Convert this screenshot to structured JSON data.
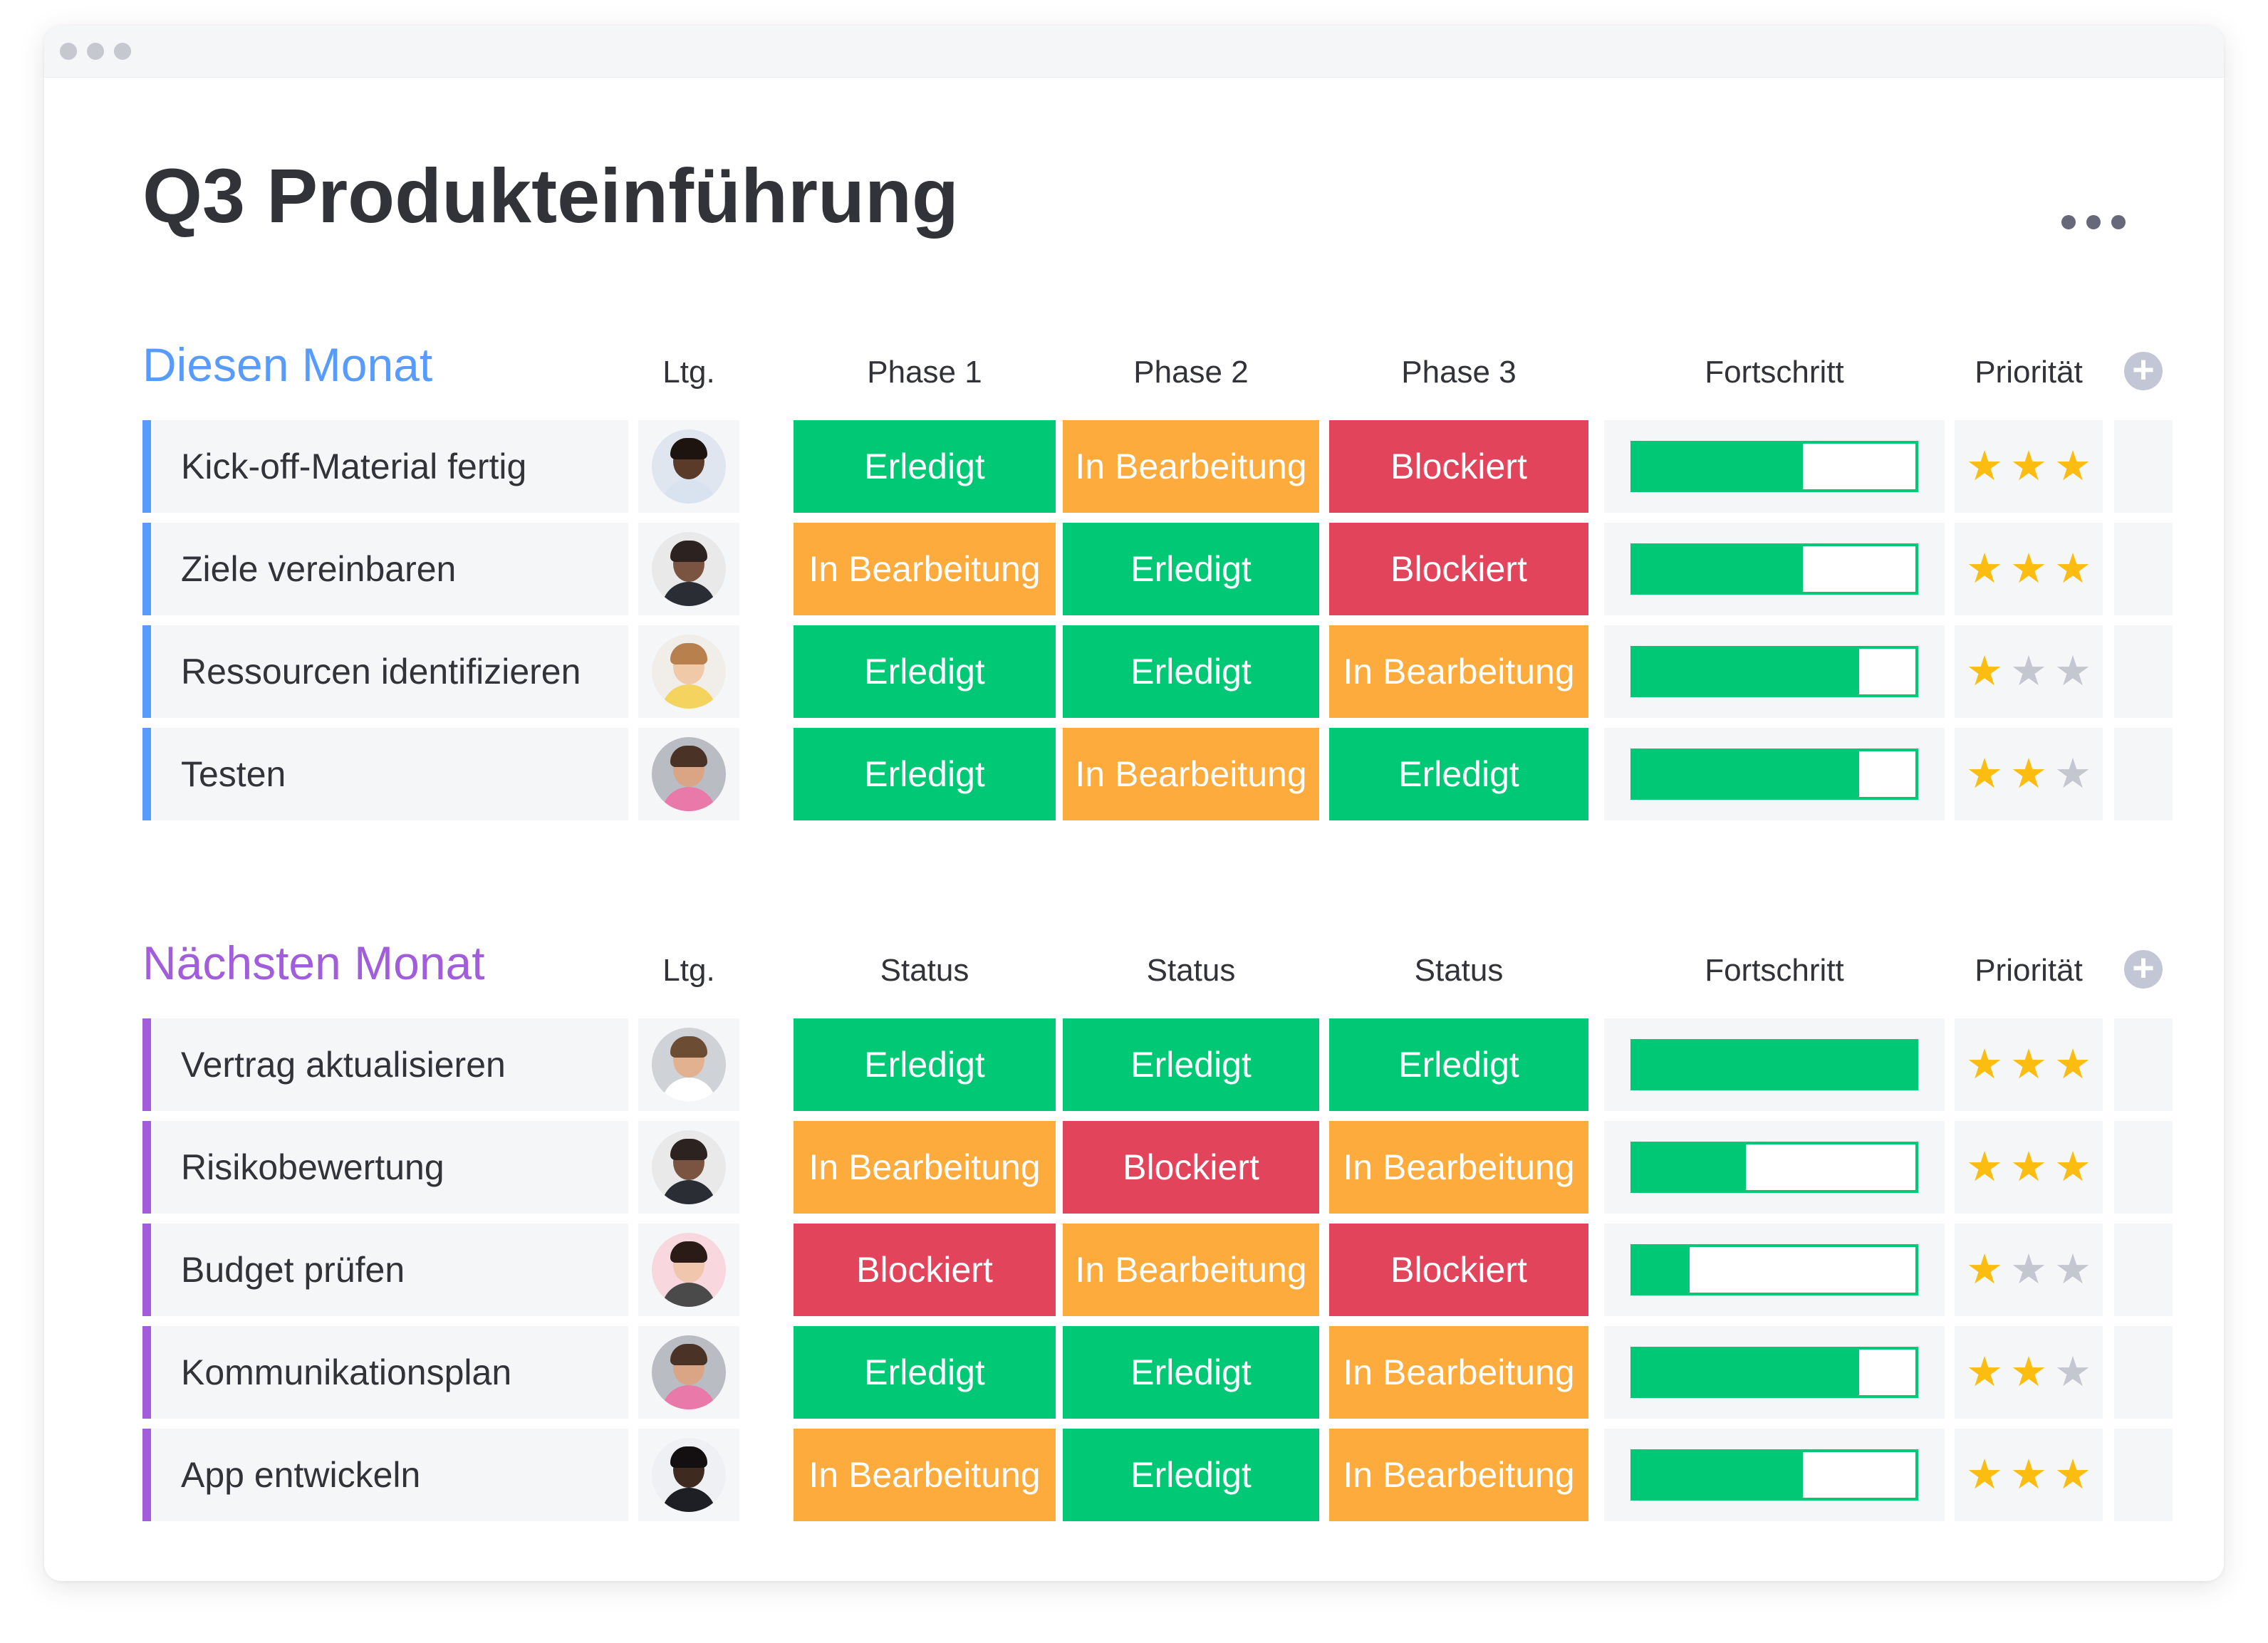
{
  "board": {
    "title": "Q3 Produkteinführung"
  },
  "colors": {
    "done": "#00c875",
    "working": "#fdab3d",
    "stuck": "#e2445c",
    "group1": "#579bfc",
    "group2": "#a25ddc",
    "star_on": "#fdbc10",
    "star_off": "#c5c7d0"
  },
  "groups": [
    {
      "title": "Diesen Monat",
      "color": "#579bfc",
      "headers": {
        "owner": "Ltg.",
        "col1": "Phase 1",
        "col2": "Phase 2",
        "col3": "Phase 3",
        "progress": "Fortschritt",
        "priority": "Priorität"
      },
      "rows": [
        {
          "name": "Kick-off-Material fertig",
          "avatar": "woman-curly-hair",
          "statuses": [
            "Erledigt",
            "In Bearbeitung",
            "Blockiert"
          ],
          "progress": 0.6,
          "stars": 3
        },
        {
          "name": "Ziele vereinbaren",
          "avatar": "man-bald-beard",
          "statuses": [
            "In Bearbeitung",
            "Erledigt",
            "Blockiert"
          ],
          "progress": 0.6,
          "stars": 3
        },
        {
          "name": "Ressourcen identifizieren",
          "avatar": "woman-long-hair",
          "statuses": [
            "Erledigt",
            "Erledigt",
            "In Bearbeitung"
          ],
          "progress": 0.8,
          "stars": 1
        },
        {
          "name": "Testen",
          "avatar": "man-beard",
          "statuses": [
            "Erledigt",
            "In Bearbeitung",
            "Erledigt"
          ],
          "progress": 0.8,
          "stars": 2
        }
      ]
    },
    {
      "title": "Nächsten Monat",
      "color": "#a25ddc",
      "headers": {
        "owner": "Ltg.",
        "col1": "Status",
        "col2": "Status",
        "col3": "Status",
        "progress": "Fortschritt",
        "priority": "Priorität"
      },
      "rows": [
        {
          "name": "Vertrag aktualisieren",
          "avatar": "man-short-hair",
          "statuses": [
            "Erledigt",
            "Erledigt",
            "Erledigt"
          ],
          "progress": 1.0,
          "stars": 3
        },
        {
          "name": "Risikobewertung",
          "avatar": "man-bald-beard",
          "statuses": [
            "In Bearbeitung",
            "Blockiert",
            "In Bearbeitung"
          ],
          "progress": 0.4,
          "stars": 3
        },
        {
          "name": "Budget prüfen",
          "avatar": "woman-dark-hair",
          "statuses": [
            "Blockiert",
            "In Bearbeitung",
            "Blockiert"
          ],
          "progress": 0.2,
          "stars": 1
        },
        {
          "name": "Kommunikationsplan",
          "avatar": "man-beard",
          "statuses": [
            "Erledigt",
            "Erledigt",
            "In Bearbeitung"
          ],
          "progress": 0.8,
          "stars": 2
        },
        {
          "name": "App entwickeln",
          "avatar": "man-dark-skin",
          "statuses": [
            "In Bearbeitung",
            "Erledigt",
            "In Bearbeitung"
          ],
          "progress": 0.6,
          "stars": 3
        }
      ]
    }
  ]
}
